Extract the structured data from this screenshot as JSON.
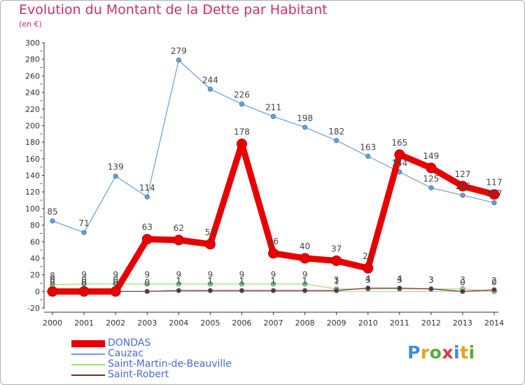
{
  "header": {
    "title": "Evolution du Montant de la Dette par Habitant",
    "subtitle": "(en €)"
  },
  "logo": {
    "text": "Proxiti",
    "colors": [
      "#3a8fd8",
      "#e8a020",
      "#5aa83a",
      "#d83a3a",
      "#3a8fd8",
      "#e8a020",
      "#5aa83a"
    ]
  },
  "chart_data": {
    "type": "line",
    "title": "Evolution du Montant de la Dette par Habitant",
    "subtitle": "(en €)",
    "xlabel": "",
    "ylabel": "",
    "x": [
      "2000",
      "2001",
      "2002",
      "2003",
      "2004",
      "2005",
      "2006",
      "2007",
      "2008",
      "2009",
      "2010",
      "2011",
      "2012",
      "2013",
      "2014"
    ],
    "ylim": [
      -20,
      300
    ],
    "yticks": [
      -20,
      0,
      20,
      40,
      60,
      80,
      100,
      120,
      140,
      160,
      180,
      200,
      220,
      240,
      260,
      280,
      300
    ],
    "grid": false,
    "legend_position": "bottom-left",
    "series": [
      {
        "name": "DONDAS",
        "color": "#e80000",
        "values": [
          0,
          0,
          0,
          63,
          62,
          57,
          178,
          46,
          40,
          37,
          28,
          165,
          149,
          127,
          117
        ],
        "labels": [
          "0",
          "0",
          "0",
          "63",
          "62",
          "57",
          "178",
          "46",
          "40",
          "37",
          "28",
          "165",
          "149",
          "127",
          "117"
        ]
      },
      {
        "name": "Cauzac",
        "color": "#6a9fd4",
        "values": [
          85,
          71,
          139,
          114,
          279,
          244,
          226,
          211,
          198,
          182,
          163,
          144,
          125,
          116,
          107
        ],
        "labels": [
          "85",
          "71",
          "139",
          "114",
          "279",
          "244",
          "226",
          "211",
          "198",
          "182",
          "163",
          "144",
          "125",
          "116",
          "107"
        ]
      },
      {
        "name": "Saint-Martin-de-Beauville",
        "color": "#9ee07a",
        "values": [
          8,
          9,
          9,
          9,
          9,
          9,
          9,
          9,
          9,
          3,
          3,
          3,
          3,
          3,
          0
        ],
        "labels": [
          "8",
          "9",
          "9",
          "9",
          "9",
          "9",
          "9",
          "9",
          "9",
          "3",
          "3",
          "3",
          "3",
          "3",
          "0"
        ]
      },
      {
        "name": "Saint-Robert",
        "color": "#7a2a2a",
        "values": [
          0,
          0,
          0,
          0,
          1,
          1,
          1,
          1,
          1,
          1,
          4,
          4,
          3,
          0,
          2
        ],
        "labels": [
          "0",
          "0",
          "0",
          "0",
          "1",
          "1",
          "1",
          "1",
          "1",
          "1",
          "4",
          "4",
          "3",
          "0",
          "2"
        ]
      }
    ]
  }
}
